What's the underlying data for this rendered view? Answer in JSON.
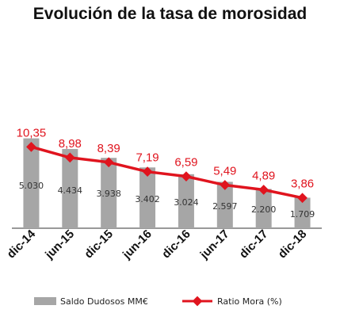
{
  "chart_data": {
    "type": "bar",
    "title": "Evolución de la tasa de morosidad",
    "categories": [
      "dic-14",
      "jun-15",
      "dic-15",
      "jun-16",
      "dic-16",
      "jun-17",
      "dic-17",
      "dic-18"
    ],
    "series": [
      {
        "name": "Saldo Dudosos MM€",
        "type": "bar",
        "values": [
          5030,
          4434,
          3938,
          3402,
          3024,
          2597,
          2200,
          1709
        ],
        "value_labels": [
          "5.030",
          "4.434",
          "3.938",
          "3.402",
          "3.024",
          "2.597",
          "2.200",
          "1.709"
        ],
        "color": "#a6a6a6"
      },
      {
        "name": "Ratio Mora (%)",
        "type": "line",
        "values": [
          10.35,
          8.98,
          8.39,
          7.19,
          6.59,
          5.49,
          4.89,
          3.86
        ],
        "value_labels": [
          "10,35",
          "8,98",
          "8,39",
          "7,19",
          "6,59",
          "5,49",
          "4,89",
          "3,86"
        ],
        "color": "#e0141e"
      }
    ],
    "bar_ylim": [
      0,
      11000
    ],
    "line_ylim": [
      0,
      25
    ],
    "legend_position": "bottom",
    "grid": false
  }
}
